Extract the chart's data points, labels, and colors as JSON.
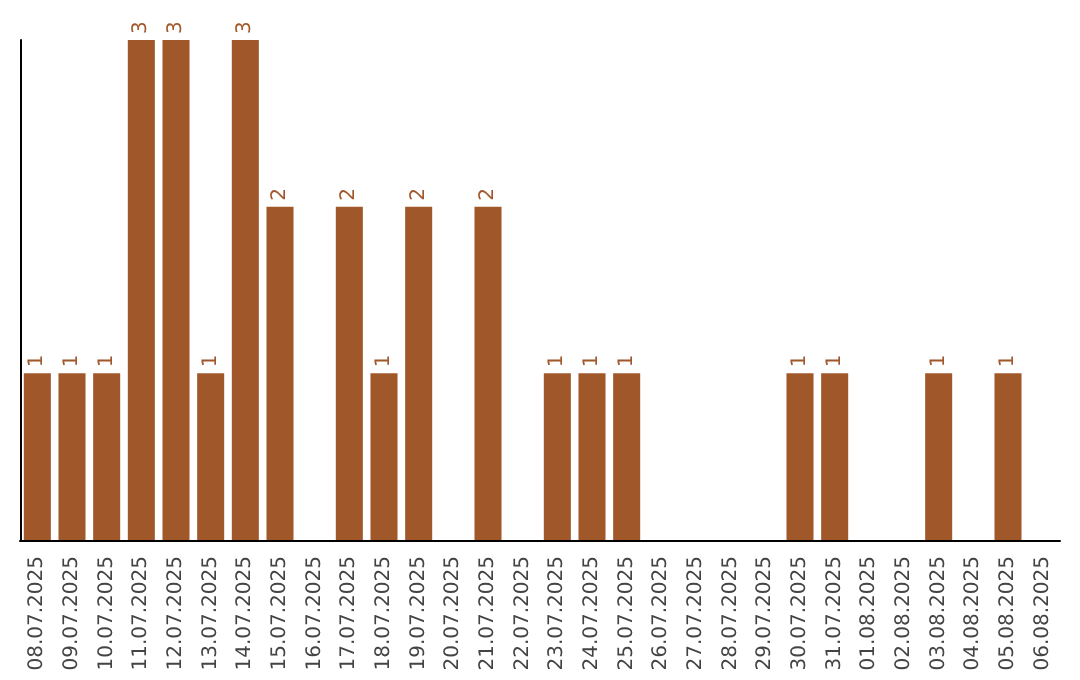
{
  "chart_data": {
    "type": "bar",
    "categories": [
      "08.07.2025",
      "09.07.2025",
      "10.07.2025",
      "11.07.2025",
      "12.07.2025",
      "13.07.2025",
      "14.07.2025",
      "15.07.2025",
      "16.07.2025",
      "17.07.2025",
      "18.07.2025",
      "19.07.2025",
      "20.07.2025",
      "21.07.2025",
      "22.07.2025",
      "23.07.2025",
      "24.07.2025",
      "25.07.2025",
      "26.07.2025",
      "27.07.2025",
      "28.07.2025",
      "29.07.2025",
      "30.07.2025",
      "31.07.2025",
      "01.08.2025",
      "02.08.2025",
      "03.08.2025",
      "04.08.2025",
      "05.08.2025",
      "06.08.2025"
    ],
    "values": [
      1,
      1,
      1,
      3,
      3,
      1,
      3,
      2,
      0,
      2,
      1,
      2,
      0,
      2,
      0,
      1,
      1,
      1,
      0,
      0,
      0,
      0,
      1,
      1,
      0,
      0,
      1,
      0,
      1,
      0
    ],
    "value_labels": [
      "1",
      "1",
      "1",
      "3",
      "3",
      "1",
      "3",
      "2",
      null,
      "2",
      "1",
      "2",
      null,
      "2",
      null,
      "1",
      "1",
      "1",
      null,
      null,
      null,
      null,
      "1",
      "1",
      null,
      null,
      "1",
      null,
      "1",
      null
    ],
    "color": "#a0582a",
    "grid": false,
    "tick_labels": "x"
  }
}
